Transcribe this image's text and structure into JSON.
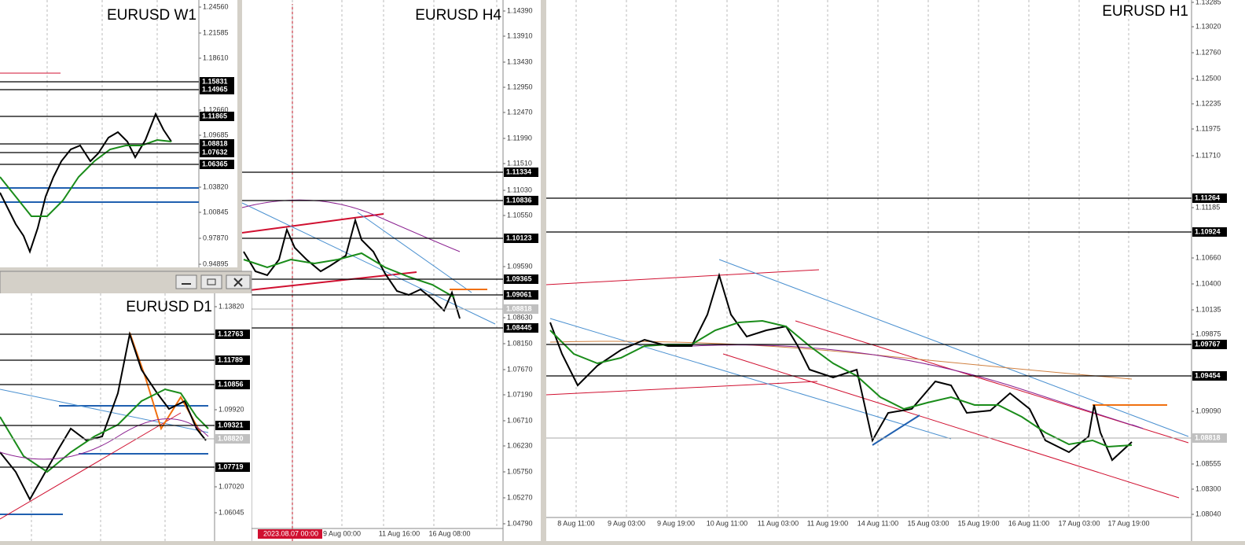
{
  "panels": {
    "w1": {
      "title": "EURUSD W1",
      "axis_labels": [
        "1.24560",
        "1.21585",
        "1.18610",
        "1.12660",
        "1.09685",
        "1.03820",
        "1.00845",
        "0.97870",
        "0.94895"
      ],
      "levels": [
        "1.15831",
        "1.14965",
        "1.11865",
        "1.08818",
        "1.07632",
        "1.06365"
      ]
    },
    "h4": {
      "title": "EURUSD H4",
      "axis_labels": [
        "1.14390",
        "1.13910",
        "1.13430",
        "1.12950",
        "1.12470",
        "1.11990",
        "1.11510",
        "1.11030",
        "1.10550",
        "1.09590",
        "1.08630",
        "1.08150",
        "1.07670",
        "1.07190",
        "1.06710",
        "1.06230",
        "1.05750",
        "1.05270",
        "1.04790"
      ],
      "levels": [
        "1.11334",
        "1.10836",
        "1.10123",
        "1.09365",
        "1.09061",
        "1.08818",
        "1.08445"
      ],
      "time_labels": [
        "2023.08.07 00:00",
        "9 Aug 00:00",
        "11 Aug 16:00",
        "16 Aug 08:00"
      ]
    },
    "h1": {
      "title": "EURUSD H1",
      "axis_labels": [
        "1.13285",
        "1.13020",
        "1.12760",
        "1.12500",
        "1.12235",
        "1.11975",
        "1.11710",
        "1.11185",
        "1.10660",
        "1.10400",
        "1.10135",
        "1.09875",
        "1.09090",
        "1.08555",
        "1.08300",
        "1.08040"
      ],
      "levels": [
        "1.11264",
        "1.10924",
        "1.09767",
        "1.09454",
        "1.08818"
      ],
      "time_labels": [
        "8 Aug 11:00",
        "9 Aug 03:00",
        "9 Aug 19:00",
        "10 Aug 11:00",
        "11 Aug 03:00",
        "11 Aug 19:00",
        "14 Aug 11:00",
        "15 Aug 03:00",
        "15 Aug 19:00",
        "16 Aug 11:00",
        "17 Aug 03:00",
        "17 Aug 19:00"
      ]
    },
    "d1": {
      "title": "EURUSD D1",
      "axis_labels": [
        "1.13820",
        "1.09920",
        "1.07020",
        "1.06045"
      ],
      "levels": [
        "1.12763",
        "1.11789",
        "1.10856",
        "1.09321",
        "1.08820",
        "1.07719"
      ]
    }
  }
}
